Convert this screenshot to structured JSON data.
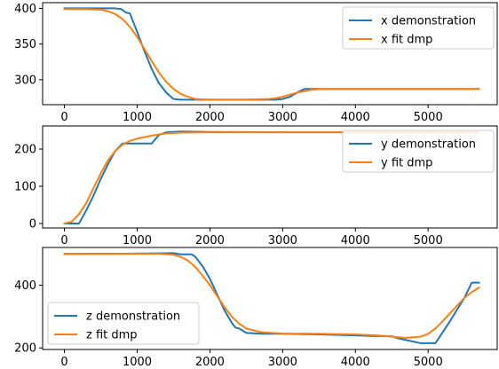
{
  "chart_data": [
    {
      "type": "line",
      "xlim": [
        -300,
        5950
      ],
      "ylim": [
        265,
        408
      ],
      "xticks": [
        0,
        1000,
        2000,
        3000,
        4000,
        5000
      ],
      "yticks": [
        300,
        350,
        400
      ],
      "grid": false,
      "legend_position": "upper right",
      "series": [
        {
          "name": "x demonstration",
          "color": "#1f77b4",
          "x": [
            0,
            300,
            500,
            700,
            780,
            850,
            900,
            1000,
            1100,
            1200,
            1300,
            1400,
            1500,
            1600,
            1800,
            2000,
            2500,
            2900,
            3000,
            3100,
            3200,
            3300,
            3400,
            3600,
            4000,
            4500,
            5000,
            5700
          ],
          "y": [
            400,
            400,
            400,
            400,
            399,
            394,
            393,
            367,
            340,
            315,
            295,
            282,
            273,
            272,
            272,
            272,
            272,
            272,
            273,
            276,
            282,
            287,
            287,
            287,
            287,
            287,
            287,
            287
          ]
        },
        {
          "name": "x fit dmp",
          "color": "#ff7f0e",
          "x": [
            0,
            300,
            500,
            600,
            700,
            800,
            900,
            1000,
            1100,
            1200,
            1300,
            1400,
            1500,
            1600,
            1700,
            1800,
            2000,
            2500,
            2800,
            2900,
            3000,
            3100,
            3200,
            3300,
            3400,
            3600,
            4000,
            5000,
            5700
          ],
          "y": [
            399,
            399,
            398,
            396,
            392,
            385,
            374,
            360,
            343,
            326,
            310,
            297,
            287,
            280,
            276,
            273,
            272,
            272,
            273,
            274,
            276,
            279,
            282,
            284,
            286,
            287,
            287,
            287,
            287
          ]
        }
      ]
    },
    {
      "type": "line",
      "xlim": [
        -300,
        5950
      ],
      "ylim": [
        -12,
        262
      ],
      "xticks": [
        0,
        1000,
        2000,
        3000,
        4000,
        5000
      ],
      "yticks": [
        0,
        100,
        200
      ],
      "grid": false,
      "legend_position": "upper right",
      "series": [
        {
          "name": "y demonstration",
          "color": "#1f77b4",
          "x": [
            0,
            200,
            300,
            400,
            500,
            600,
            700,
            800,
            1000,
            1200,
            1300,
            1400,
            1600,
            2000,
            3000,
            4000,
            5000,
            5700
          ],
          "y": [
            0,
            0,
            35,
            75,
            120,
            160,
            195,
            215,
            215,
            215,
            238,
            245,
            247,
            246,
            245,
            245,
            245,
            245
          ]
        },
        {
          "name": "y fit dmp",
          "color": "#ff7f0e",
          "x": [
            0,
            100,
            200,
            300,
            400,
            500,
            600,
            700,
            800,
            900,
            1000,
            1200,
            1400,
            1600,
            2000,
            3000,
            4000,
            5000,
            5700
          ],
          "y": [
            0,
            5,
            25,
            55,
            95,
            135,
            170,
            195,
            212,
            222,
            228,
            236,
            242,
            244,
            245,
            245,
            245,
            245,
            245
          ]
        }
      ]
    },
    {
      "type": "line",
      "xlim": [
        -300,
        5950
      ],
      "ylim": [
        195,
        520
      ],
      "xticks": [
        0,
        1000,
        2000,
        3000,
        4000,
        5000
      ],
      "yticks": [
        200,
        400
      ],
      "grid": false,
      "legend_position": "lower left",
      "series": [
        {
          "name": "z demonstration",
          "color": "#1f77b4",
          "x": [
            0,
            700,
            1500,
            1600,
            1750,
            1800,
            1900,
            2000,
            2100,
            2200,
            2300,
            2350,
            2400,
            2500,
            2700,
            3000,
            3500,
            4000,
            4200,
            4500,
            4600,
            4700,
            4900,
            5100,
            5300,
            5500,
            5600,
            5700
          ],
          "y": [
            500,
            500,
            502,
            498,
            498,
            490,
            460,
            420,
            370,
            320,
            280,
            265,
            262,
            248,
            245,
            245,
            243,
            240,
            238,
            237,
            230,
            225,
            215,
            215,
            285,
            360,
            408,
            408
          ]
        },
        {
          "name": "z fit dmp",
          "color": "#ff7f0e",
          "x": [
            0,
            500,
            1000,
            1300,
            1500,
            1600,
            1700,
            1800,
            1900,
            2000,
            2100,
            2200,
            2300,
            2400,
            2500,
            2700,
            3000,
            3500,
            4000,
            4300,
            4500,
            4700,
            4900,
            5000,
            5100,
            5200,
            5300,
            5400,
            5500,
            5600,
            5700
          ],
          "y": [
            499,
            500,
            500,
            500,
            497,
            490,
            478,
            458,
            430,
            400,
            365,
            330,
            300,
            278,
            262,
            250,
            246,
            245,
            243,
            240,
            236,
            232,
            236,
            245,
            262,
            285,
            310,
            335,
            360,
            378,
            392
          ]
        }
      ]
    }
  ]
}
